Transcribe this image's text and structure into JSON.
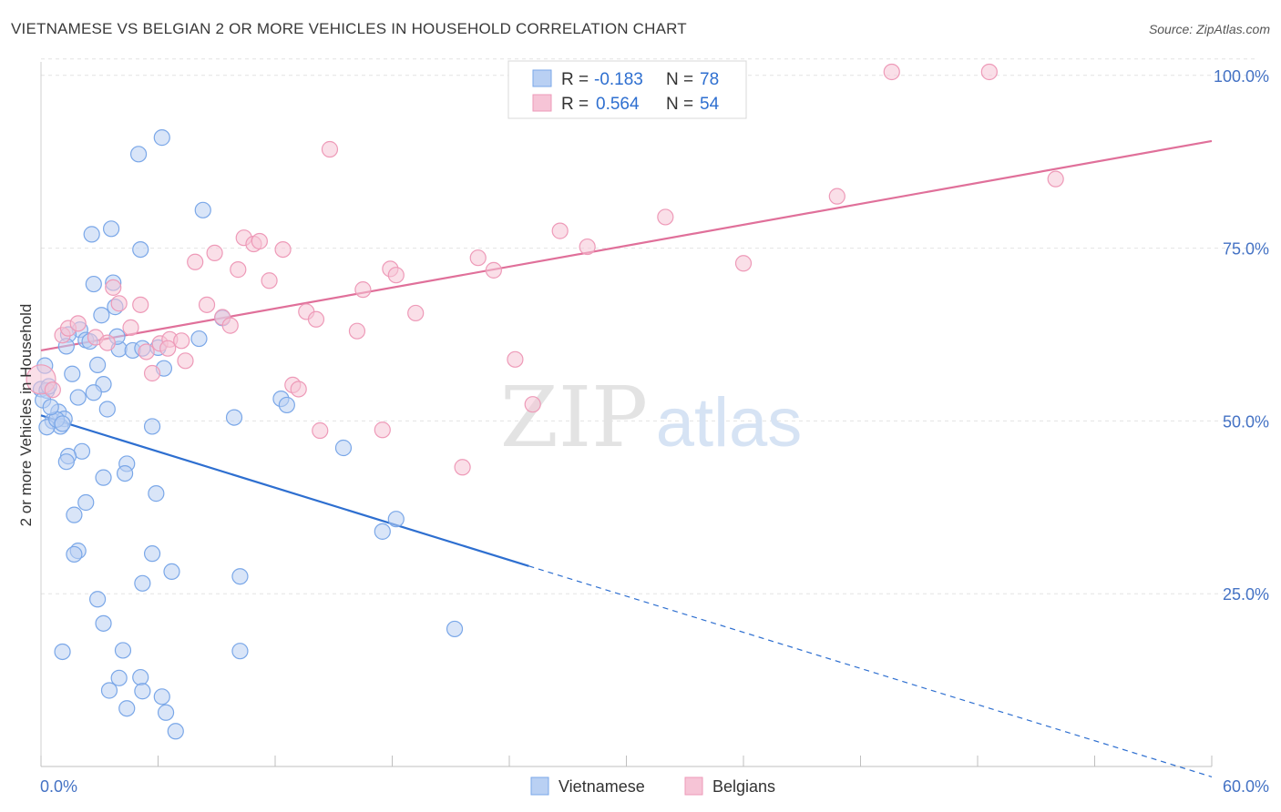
{
  "header": {
    "title": "VIETNAMESE VS BELGIAN 2 OR MORE VEHICLES IN HOUSEHOLD CORRELATION CHART",
    "source": "Source: ZipAtlas.com"
  },
  "watermark": {
    "zip": "ZIP",
    "atlas": "atlas"
  },
  "chart_data": {
    "type": "scatter",
    "ylabel": "2 or more Vehicles in Household",
    "xlim": [
      0,
      60
    ],
    "ylim": [
      0,
      103
    ],
    "x_tick_labels": [
      "0.0%",
      "60.0%"
    ],
    "y_ticks": [
      25,
      50,
      75,
      100
    ],
    "y_tick_labels": [
      "25.0%",
      "50.0%",
      "75.0%",
      "100.0%"
    ],
    "grid": true,
    "legend": {
      "placement": "top-center",
      "rows": [
        {
          "r_label": "R =",
          "r_value": "-0.183",
          "n_label": "N =",
          "n_value": "78"
        },
        {
          "r_label": "R =",
          "r_value": "0.564",
          "n_label": "N =",
          "n_value": "54"
        }
      ]
    },
    "series": [
      {
        "name": "Vietnamese",
        "color": "#7aa7e8",
        "fill": "#b9d0f3",
        "trend": {
          "x0": 0,
          "y0": 50.8,
          "x1": 25.0,
          "y1": 29.0,
          "dash_to_x": 60,
          "dash_to_y": -1.5,
          "color": "#2e6fd0"
        },
        "points": [
          [
            6.2,
            91.0
          ],
          [
            5.0,
            88.6
          ],
          [
            8.3,
            80.5
          ],
          [
            3.6,
            77.8
          ],
          [
            2.6,
            77.0
          ],
          [
            5.1,
            74.8
          ],
          [
            2.7,
            69.8
          ],
          [
            3.7,
            70.0
          ],
          [
            3.8,
            66.5
          ],
          [
            3.1,
            65.3
          ],
          [
            9.3,
            64.9
          ],
          [
            2.0,
            63.2
          ],
          [
            1.4,
            62.5
          ],
          [
            2.3,
            61.7
          ],
          [
            8.1,
            61.9
          ],
          [
            4.0,
            60.4
          ],
          [
            4.7,
            60.2
          ],
          [
            5.2,
            60.5
          ],
          [
            6.0,
            60.6
          ],
          [
            0.2,
            58.0
          ],
          [
            2.9,
            58.1
          ],
          [
            6.3,
            57.6
          ],
          [
            1.6,
            56.8
          ],
          [
            3.2,
            55.3
          ],
          [
            0.0,
            54.6
          ],
          [
            0.3,
            54.4
          ],
          [
            2.7,
            54.1
          ],
          [
            1.9,
            53.4
          ],
          [
            12.3,
            53.2
          ],
          [
            0.1,
            53.0
          ],
          [
            3.4,
            51.7
          ],
          [
            12.6,
            52.3
          ],
          [
            0.9,
            51.3
          ],
          [
            0.6,
            50.0
          ],
          [
            1.2,
            50.3
          ],
          [
            9.9,
            50.5
          ],
          [
            1.0,
            49.2
          ],
          [
            0.3,
            49.1
          ],
          [
            5.7,
            49.2
          ],
          [
            15.5,
            46.1
          ],
          [
            2.1,
            45.6
          ],
          [
            1.4,
            44.9
          ],
          [
            1.3,
            44.1
          ],
          [
            4.4,
            43.8
          ],
          [
            4.3,
            42.4
          ],
          [
            3.2,
            41.8
          ],
          [
            5.9,
            39.5
          ],
          [
            2.3,
            38.2
          ],
          [
            1.7,
            36.4
          ],
          [
            18.2,
            35.8
          ],
          [
            17.5,
            34.0
          ],
          [
            1.9,
            31.2
          ],
          [
            1.7,
            30.7
          ],
          [
            5.7,
            30.8
          ],
          [
            6.7,
            28.2
          ],
          [
            10.2,
            27.5
          ],
          [
            5.2,
            26.5
          ],
          [
            2.9,
            24.2
          ],
          [
            3.2,
            20.7
          ],
          [
            21.2,
            19.9
          ],
          [
            1.1,
            16.6
          ],
          [
            4.2,
            16.8
          ],
          [
            10.2,
            16.7
          ],
          [
            5.1,
            12.9
          ],
          [
            4.0,
            12.8
          ],
          [
            3.5,
            11.0
          ],
          [
            5.2,
            10.9
          ],
          [
            6.2,
            10.1
          ],
          [
            6.4,
            7.8
          ],
          [
            4.4,
            8.4
          ],
          [
            6.9,
            5.1
          ],
          [
            0.4,
            55.0
          ],
          [
            0.8,
            50.2
          ],
          [
            1.1,
            49.6
          ],
          [
            2.5,
            61.5
          ],
          [
            3.9,
            62.2
          ],
          [
            1.3,
            60.8
          ],
          [
            0.5,
            52.0
          ]
        ]
      },
      {
        "name": "Belgians",
        "color": "#ee9ab8",
        "fill": "#f6c4d6",
        "trend": {
          "x0": 0,
          "y0": 60.2,
          "x1": 60,
          "y1": 90.5,
          "color": "#e0709a"
        },
        "points": [
          [
            0.0,
            56.0
          ],
          [
            1.1,
            62.4
          ],
          [
            1.4,
            63.4
          ],
          [
            1.9,
            64.1
          ],
          [
            2.8,
            62.1
          ],
          [
            3.4,
            61.3
          ],
          [
            3.7,
            69.3
          ],
          [
            4.0,
            67.0
          ],
          [
            4.6,
            63.5
          ],
          [
            5.1,
            66.8
          ],
          [
            5.4,
            60.0
          ],
          [
            5.7,
            56.9
          ],
          [
            6.1,
            61.2
          ],
          [
            6.6,
            61.8
          ],
          [
            7.2,
            61.6
          ],
          [
            7.4,
            58.7
          ],
          [
            7.9,
            73.0
          ],
          [
            8.5,
            66.8
          ],
          [
            8.9,
            74.3
          ],
          [
            9.3,
            65.0
          ],
          [
            9.7,
            63.8
          ],
          [
            10.1,
            71.9
          ],
          [
            10.4,
            76.5
          ],
          [
            10.9,
            75.6
          ],
          [
            11.2,
            76.0
          ],
          [
            11.7,
            70.3
          ],
          [
            12.4,
            74.8
          ],
          [
            12.9,
            55.2
          ],
          [
            13.2,
            54.6
          ],
          [
            13.6,
            65.8
          ],
          [
            14.1,
            64.7
          ],
          [
            14.3,
            48.6
          ],
          [
            14.8,
            89.3
          ],
          [
            16.2,
            63.0
          ],
          [
            16.5,
            69.0
          ],
          [
            17.5,
            48.7
          ],
          [
            17.9,
            72.0
          ],
          [
            18.2,
            71.1
          ],
          [
            19.2,
            65.6
          ],
          [
            21.6,
            43.3
          ],
          [
            22.4,
            73.6
          ],
          [
            23.2,
            71.8
          ],
          [
            24.3,
            58.9
          ],
          [
            25.2,
            52.4
          ],
          [
            26.6,
            77.5
          ],
          [
            28.0,
            75.2
          ],
          [
            32.0,
            79.5
          ],
          [
            36.0,
            72.8
          ],
          [
            40.8,
            82.5
          ],
          [
            43.6,
            100.5
          ],
          [
            48.6,
            100.5
          ],
          [
            52.0,
            85.0
          ],
          [
            0.6,
            54.5
          ],
          [
            6.5,
            60.5
          ]
        ]
      }
    ]
  }
}
